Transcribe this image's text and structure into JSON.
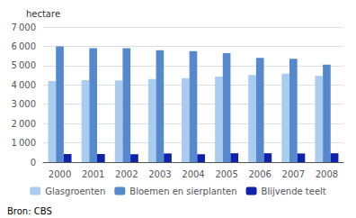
{
  "chart_data": {
    "type": "bar",
    "categories": [
      "2000",
      "2001",
      "2002",
      "2003",
      "2004",
      "2005",
      "2006",
      "2007",
      "2008"
    ],
    "series": [
      {
        "name": "Glasgroenten",
        "color": "#aaccee",
        "values": [
          4200,
          4250,
          4230,
          4300,
          4350,
          4430,
          4520,
          4580,
          4470
        ]
      },
      {
        "name": "Bloemen en sierplanten",
        "color": "#5588cc",
        "values": [
          6000,
          5900,
          5900,
          5800,
          5750,
          5650,
          5400,
          5350,
          5050
        ]
      },
      {
        "name": "Blijvende teelt",
        "color": "#1122aa",
        "values": [
          420,
          420,
          410,
          450,
          410,
          460,
          460,
          450,
          460
        ]
      }
    ],
    "ylabel": "hectare",
    "ylim": [
      0,
      7000
    ],
    "yticks": [
      0,
      {
        "value": 1000,
        "label": "1 000"
      },
      {
        "value": 2000,
        "label": "2 000"
      },
      {
        "value": 3000,
        "label": "3 000"
      },
      {
        "value": 4000,
        "label": "4 000"
      },
      {
        "value": 5000,
        "label": "5 000"
      },
      {
        "value": 6000,
        "label": "6 000"
      },
      {
        "value": 7000,
        "label": "7 000"
      }
    ],
    "grid": true,
    "legend": "bottom",
    "source": "Bron: CBS"
  }
}
